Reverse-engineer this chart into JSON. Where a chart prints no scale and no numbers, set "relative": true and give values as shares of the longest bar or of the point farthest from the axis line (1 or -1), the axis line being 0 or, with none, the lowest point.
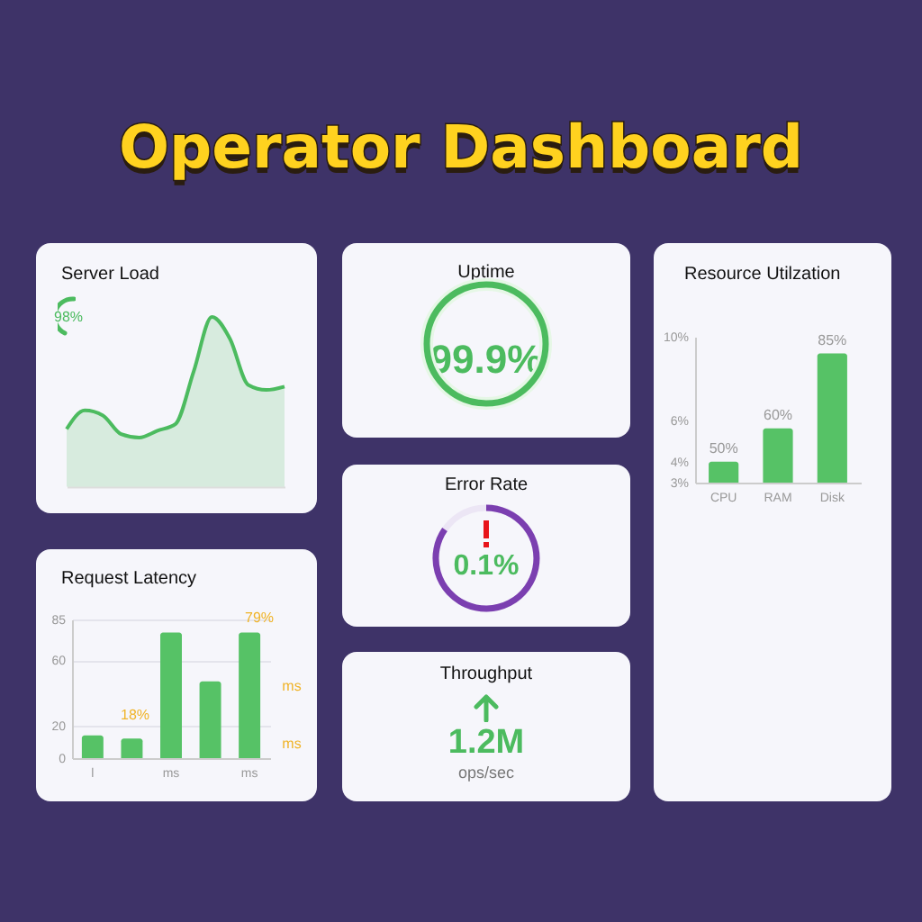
{
  "chart_data": [
    {
      "type": "other",
      "title": "Operator Dashboard"
    },
    {
      "type": "area",
      "title": "Server Load",
      "relative": true,
      "categories": [
        null,
        null,
        null,
        null,
        null,
        null,
        null,
        null,
        null,
        null,
        null,
        null,
        null
      ],
      "series": [
        {
          "color": "#4cbb5f",
          "values": [
            0.34,
            0.45,
            0.42,
            0.31,
            0.29,
            0.33,
            0.37,
            0.68,
            1.0,
            0.87,
            0.6,
            0.57,
            0.59
          ]
        }
      ],
      "annotations": [
        "98%"
      ]
    },
    {
      "type": "other",
      "title": "Uptime",
      "annotations": [
        "99.9%"
      ]
    },
    {
      "type": "bar",
      "title": "Resource Utilzation",
      "categories": [
        "CPU",
        "RAM",
        "Disk"
      ],
      "values": [
        4.0,
        5.6,
        9.2
      ],
      "color": "#56c266",
      "ylim": [
        3,
        10
      ],
      "yticks": [
        {
          "value": 3,
          "label": "3%"
        },
        {
          "value": 4,
          "label": "4%"
        },
        {
          "value": 6,
          "label": "6%"
        },
        {
          "value": 10,
          "label": "10%"
        }
      ],
      "annotations": [
        {
          "text": "50%",
          "x": "CPU",
          "y": 4.0
        },
        {
          "text": "60%",
          "x": "RAM",
          "y": 5.6
        },
        {
          "text": "85%",
          "x": "Disk",
          "y": 9.2
        }
      ]
    },
    {
      "type": "other",
      "title": "Error Rate",
      "annotations": [
        "0.1%"
      ]
    },
    {
      "type": "bar",
      "title": "Request Latency",
      "categories": [
        "l",
        null,
        "ms",
        null,
        "ms"
      ],
      "values": [
        14,
        12,
        77,
        47,
        77
      ],
      "color": "#56c266",
      "ylim": [
        0,
        85
      ],
      "yticks": [
        0,
        20,
        60,
        85
      ],
      "grid": "y",
      "annotations": [
        "18%",
        "79%",
        "ms",
        "ms"
      ]
    },
    {
      "type": "other",
      "title": "Throughput",
      "annotations": [
        "1.2M",
        "ops/sec"
      ]
    }
  ]
}
